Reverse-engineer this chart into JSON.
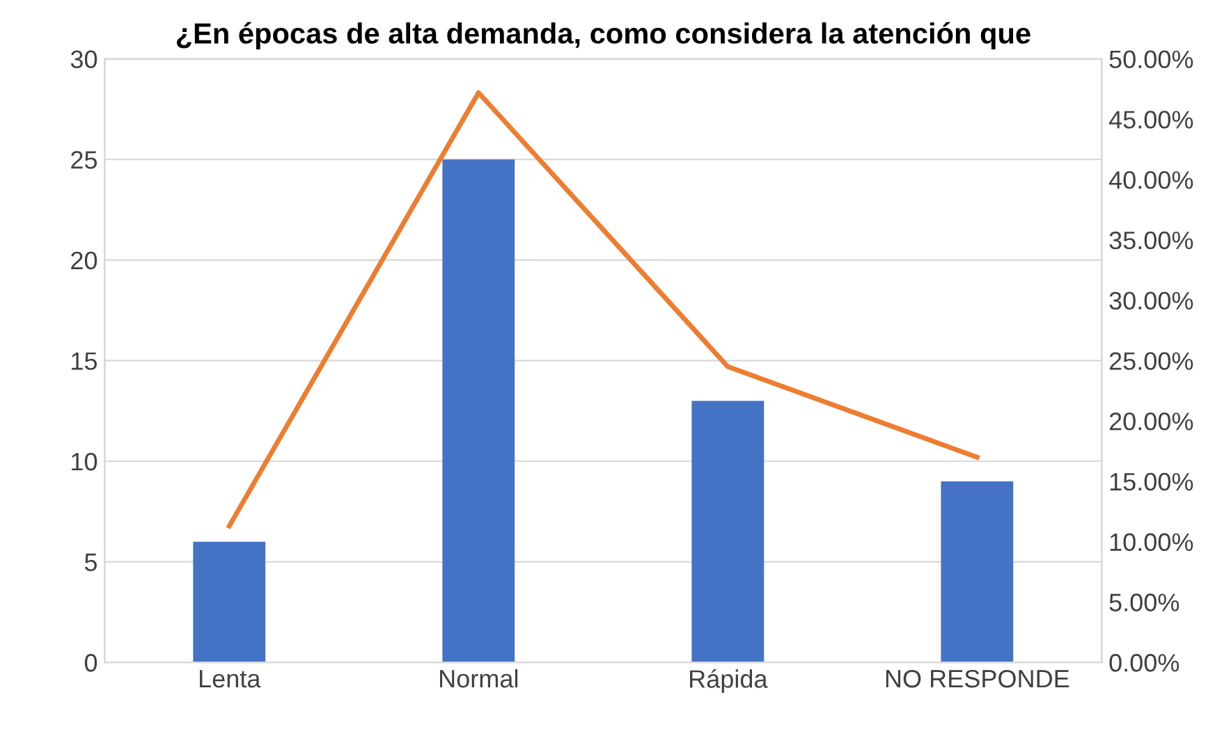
{
  "chart_data": {
    "type": "bar",
    "title": "¿En épocas de alta demanda, como considera la atención que",
    "categories": [
      "Lenta",
      "Normal",
      "Rápida",
      "NO RESPONDE"
    ],
    "series": [
      {
        "color": "#4472c4",
        "values": [
          6,
          25,
          13,
          9
        ]
      },
      {
        "type": "line",
        "axis": "y2",
        "color": "#ed7d31",
        "values": [
          11.3,
          47.2,
          24.5,
          17.0
        ]
      }
    ],
    "ylim": [
      0,
      30
    ],
    "yticks": [
      0,
      5,
      10,
      15,
      20,
      25,
      30
    ],
    "y2lim": [
      0,
      50
    ],
    "y2ticks": [
      {
        "value": 0,
        "label": "0.00%"
      },
      {
        "value": 5,
        "label": "5.00%"
      },
      {
        "value": 10,
        "label": "10.00%"
      },
      {
        "value": 15,
        "label": "15.00%"
      },
      {
        "value": 20,
        "label": "20.00%"
      },
      {
        "value": 25,
        "label": "25.00%"
      },
      {
        "value": 30,
        "label": "30.00%"
      },
      {
        "value": 35,
        "label": "35.00%"
      },
      {
        "value": 40,
        "label": "40.00%"
      },
      {
        "value": 45,
        "label": "45.00%"
      },
      {
        "value": 50,
        "label": "50.00%"
      }
    ],
    "grid": "y",
    "marker": "none",
    "line_style": "solid"
  }
}
